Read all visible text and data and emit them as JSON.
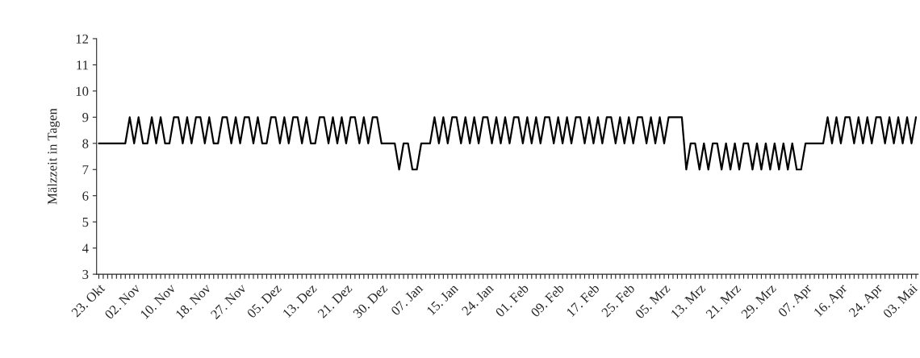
{
  "chart_data": {
    "type": "line",
    "ylabel": "Mälzzeit in Tagen",
    "categories": [
      "23. Okt",
      null,
      null,
      null,
      null,
      null,
      null,
      null,
      "02. Nov",
      null,
      null,
      null,
      null,
      null,
      null,
      null,
      "10. Nov",
      null,
      null,
      null,
      null,
      null,
      null,
      null,
      "18. Nov",
      null,
      null,
      null,
      null,
      null,
      null,
      null,
      "27. Nov",
      null,
      null,
      null,
      null,
      null,
      null,
      null,
      "05. Dez",
      null,
      null,
      null,
      null,
      null,
      null,
      null,
      "13. Dez",
      null,
      null,
      null,
      null,
      null,
      null,
      null,
      "21. Dez",
      null,
      null,
      null,
      null,
      null,
      null,
      null,
      "30. Dez",
      null,
      null,
      null,
      null,
      null,
      null,
      null,
      "07. Jan",
      null,
      null,
      null,
      null,
      null,
      null,
      null,
      "15. Jan",
      null,
      null,
      null,
      null,
      null,
      null,
      null,
      "24. Jan",
      null,
      null,
      null,
      null,
      null,
      null,
      null,
      "01. Feb",
      null,
      null,
      null,
      null,
      null,
      null,
      null,
      "09. Feb",
      null,
      null,
      null,
      null,
      null,
      null,
      null,
      "17. Feb",
      null,
      null,
      null,
      null,
      null,
      null,
      null,
      "25. Feb",
      null,
      null,
      null,
      null,
      null,
      null,
      null,
      "05. Mrz",
      null,
      null,
      null,
      null,
      null,
      null,
      null,
      "13. Mrz",
      null,
      null,
      null,
      null,
      null,
      null,
      null,
      "21. Mrz",
      null,
      null,
      null,
      null,
      null,
      null,
      null,
      "29. Mrz",
      null,
      null,
      null,
      null,
      null,
      null,
      null,
      "07. Apr",
      null,
      null,
      null,
      null,
      null,
      null,
      null,
      "16. Apr",
      null,
      null,
      null,
      null,
      null,
      null,
      null,
      "24. Apr",
      null,
      null,
      null,
      null,
      null,
      null,
      null,
      "03. Mai",
      null
    ],
    "series": [
      {
        "color": "#000000",
        "values": [
          8,
          8,
          8,
          8,
          8,
          8,
          8,
          9,
          8,
          9,
          8,
          8,
          9,
          8,
          9,
          8,
          8,
          9,
          9,
          8,
          9,
          8,
          9,
          9,
          8,
          9,
          8,
          8,
          9,
          9,
          8,
          9,
          8,
          9,
          9,
          8,
          9,
          8,
          8,
          9,
          9,
          8,
          9,
          8,
          9,
          9,
          8,
          9,
          8,
          8,
          9,
          9,
          8,
          9,
          8,
          9,
          8,
          9,
          9,
          8,
          9,
          8,
          9,
          9,
          8,
          8,
          8,
          8,
          7,
          8,
          8,
          7,
          7,
          8,
          8,
          8,
          9,
          8,
          9,
          8,
          9,
          9,
          8,
          9,
          8,
          9,
          8,
          9,
          9,
          8,
          9,
          8,
          9,
          8,
          9,
          9,
          8,
          9,
          8,
          9,
          8,
          9,
          9,
          8,
          9,
          8,
          9,
          8,
          9,
          9,
          8,
          9,
          8,
          9,
          8,
          9,
          9,
          8,
          9,
          8,
          9,
          8,
          9,
          9,
          8,
          9,
          8,
          9,
          8,
          9,
          9,
          9,
          9,
          7,
          8,
          8,
          7,
          8,
          7,
          8,
          8,
          7,
          8,
          7,
          8,
          7,
          8,
          8,
          7,
          8,
          7,
          8,
          7,
          8,
          7,
          8,
          7,
          8,
          7,
          7,
          8,
          8,
          8,
          8,
          8,
          9,
          8,
          9,
          8,
          9,
          9,
          8,
          9,
          8,
          9,
          8,
          9,
          9,
          8,
          9,
          8,
          9,
          8,
          9,
          8,
          9
        ]
      }
    ],
    "ylim": [
      3,
      12
    ],
    "yticks": [
      3,
      4,
      5,
      6,
      7,
      8,
      9,
      10,
      11,
      12
    ],
    "grid": false,
    "legend": false
  }
}
